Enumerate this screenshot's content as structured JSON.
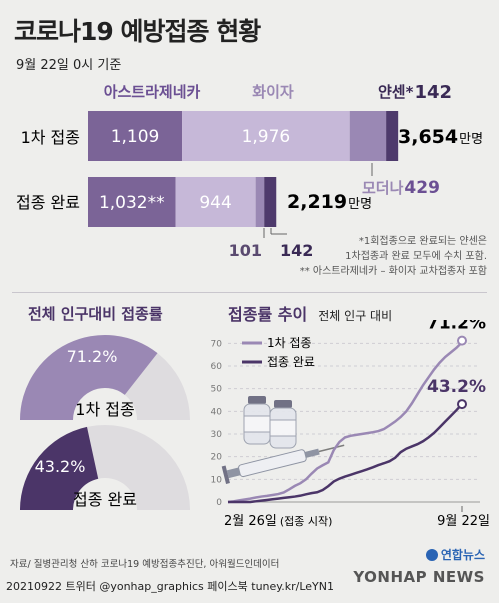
{
  "header": {
    "title": "코로나19 예방접종 현황",
    "subtitle": "9월 22일 0시 기준"
  },
  "colors": {
    "astra": "#7b6497",
    "pfizer": "#c6b8d8",
    "moderna": "#9a88b4",
    "janssen": "#4e3a6c",
    "dark": "#4b3568",
    "text_purple": "#6b4f93",
    "gray": "#dedcdf"
  },
  "chart_data": [
    {
      "type": "bar",
      "title": "",
      "unit": "만명",
      "categories": [
        "1차 접종",
        "접종 완료"
      ],
      "series": [
        {
          "name": "아스트라제네카",
          "values": [
            1109,
            1032
          ]
        },
        {
          "name": "화이자",
          "values": [
            1976,
            944
          ]
        },
        {
          "name": "모더나",
          "values": [
            429,
            101
          ]
        },
        {
          "name": "얀센*",
          "values": [
            142,
            142
          ]
        }
      ],
      "totals": [
        3654
      ],
      "total_labels": [
        "3,654",
        "2,219"
      ],
      "data_labels": {
        "astra_first": "1,109",
        "pfizer_first": "1,976",
        "janssen_first": "142",
        "moderna_first": "429",
        "astra_complete": "1,032**",
        "pfizer_complete": "944",
        "moderna_complete": "101",
        "janssen_complete": "142"
      },
      "legend_names": {
        "astra": "아스트라제네카",
        "pfizer": "화이자",
        "janssen": "얀센*",
        "moderna": "모더나"
      }
    },
    {
      "type": "pie",
      "title": "전체 인구대비 접종률",
      "items": [
        {
          "label": "1차 접종",
          "value": 71.2,
          "display": "71.2%"
        },
        {
          "label": "접종 완료",
          "value": 43.2,
          "display": "43.2%"
        }
      ]
    },
    {
      "type": "line",
      "title": "접종률 추이",
      "subtitle": "전체 인구 대비",
      "x_start_label": "2월 26일",
      "x_start_note": "(접종 시작)",
      "x_end_label": "9월 22일",
      "yticks": [
        0,
        10,
        20,
        30,
        40,
        50,
        60,
        70
      ],
      "ylim": [
        0,
        75
      ],
      "series": [
        {
          "name": "1차 접종",
          "points": [
            [
              0,
              0
            ],
            [
              5,
              0.3
            ],
            [
              10,
              0.7
            ],
            [
              15,
              1.1
            ],
            [
              20,
              1.5
            ],
            [
              25,
              2
            ],
            [
              30,
              2.4
            ],
            [
              35,
              2.7
            ],
            [
              40,
              3.1
            ],
            [
              45,
              3.5
            ],
            [
              50,
              4.2
            ],
            [
              55,
              5.6
            ],
            [
              60,
              7.1
            ],
            [
              65,
              8.3
            ],
            [
              70,
              10
            ],
            [
              75,
              12.5
            ],
            [
              80,
              14.8
            ],
            [
              85,
              16.2
            ],
            [
              90,
              17.5
            ],
            [
              95,
              23
            ],
            [
              100,
              26.5
            ],
            [
              105,
              28.5
            ],
            [
              110,
              29.2
            ],
            [
              115,
              29.6
            ],
            [
              120,
              30
            ],
            [
              125,
              30.4
            ],
            [
              130,
              30.8
            ],
            [
              135,
              31.3
            ],
            [
              140,
              32.2
            ],
            [
              145,
              33.8
            ],
            [
              150,
              35.5
            ],
            [
              155,
              37.5
            ],
            [
              160,
              40
            ],
            [
              165,
              43.5
            ],
            [
              170,
              47.5
            ],
            [
              175,
              51.5
            ],
            [
              180,
              55
            ],
            [
              185,
              58.5
            ],
            [
              190,
              61.5
            ],
            [
              195,
              64
            ],
            [
              200,
              66
            ],
            [
              205,
              68
            ],
            [
              208,
              69.5
            ],
            [
              210,
              71.2
            ]
          ],
          "end_label": "71.2%"
        },
        {
          "name": "접종 완료",
          "points": [
            [
              0,
              0
            ],
            [
              20,
              0
            ],
            [
              25,
              0.3
            ],
            [
              30,
              0.6
            ],
            [
              35,
              0.9
            ],
            [
              40,
              1.2
            ],
            [
              45,
              1.5
            ],
            [
              50,
              1.8
            ],
            [
              55,
              2.1
            ],
            [
              60,
              2.4
            ],
            [
              65,
              2.8
            ],
            [
              70,
              3.4
            ],
            [
              75,
              3.9
            ],
            [
              80,
              4.3
            ],
            [
              85,
              5.3
            ],
            [
              90,
              7
            ],
            [
              95,
              9.1
            ],
            [
              100,
              10.3
            ],
            [
              105,
              11.2
            ],
            [
              110,
              12
            ],
            [
              115,
              12.8
            ],
            [
              120,
              13.6
            ],
            [
              125,
              14.4
            ],
            [
              130,
              15.3
            ],
            [
              135,
              16.3
            ],
            [
              140,
              17.1
            ],
            [
              145,
              18
            ],
            [
              150,
              19.5
            ],
            [
              155,
              22
            ],
            [
              160,
              23.5
            ],
            [
              165,
              24.5
            ],
            [
              170,
              25.5
            ],
            [
              175,
              26.8
            ],
            [
              180,
              28.5
            ],
            [
              185,
              30.5
            ],
            [
              190,
              33
            ],
            [
              195,
              35.5
            ],
            [
              200,
              38
            ],
            [
              205,
              40.5
            ],
            [
              210,
              43.2
            ]
          ],
          "end_label": "43.2%"
        }
      ]
    }
  ],
  "notes": {
    "note1": "*1회접종으로 완료되는 얀센은",
    "note2": "1차접종과 완료 모두에 수치 포함.",
    "note3": "** 아스트라제네카 – 화이자 교차접종자 포함"
  },
  "footer": {
    "source": "자료/ 질병관리청 산하 코로나19 예방접종추진단, 아워월드인데이터",
    "credit": "20210922 트위터 @yonhap_graphics  페이스북 tuney.kr/LeYN1",
    "brand_small": "연합뉴스",
    "brand_big": "YONHAP NEWS"
  }
}
